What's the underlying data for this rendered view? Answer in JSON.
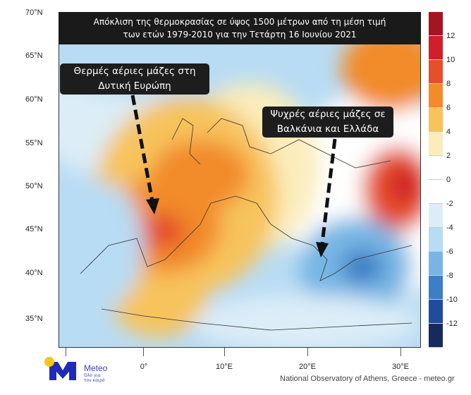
{
  "title": {
    "line1": "Απόκλιση της θερμοκρασίας σε ύψος 1500 μέτρων από τη μέση τιμή",
    "line2": "των ετών 1979-2010 για την Τετάρτη 16 Ιουνίου 2021"
  },
  "callouts": {
    "warm": {
      "line1": "Θερμές αέριες μάζες στη",
      "line2": "Δυτική Ευρώπη"
    },
    "cold": {
      "line1": "Ψυχρές αέριες μάζες σε",
      "line2": "Βαλκάνια και Ελλάδα"
    }
  },
  "lat_labels": [
    "70°N",
    "65°N",
    "60°N",
    "55°N",
    "50°N",
    "45°N",
    "40°N",
    "35°N"
  ],
  "lon_labels": [
    "0°",
    "10°E",
    "20°E",
    "30°E"
  ],
  "colorbar": {
    "labels": [
      "12",
      "10",
      "8",
      "6",
      "4",
      "2",
      "0",
      "-2",
      "-4",
      "-6",
      "-8",
      "-10",
      "-12"
    ],
    "colors": [
      "#a31621",
      "#cf1f2b",
      "#e5502c",
      "#f28b2a",
      "#f7c35c",
      "#fbedbb",
      "#ffffff",
      "#ffffff",
      "#dcedf7",
      "#b8dcf3",
      "#77b6e4",
      "#3c7fc4",
      "#1f4c9c",
      "#172a5e"
    ]
  },
  "logo": {
    "name": "Meteo",
    "tagline_1": "Όλο για",
    "tagline_2": "τον καιρό"
  },
  "credit": "National Observatory of Athens, Greece - meteo.gr"
}
